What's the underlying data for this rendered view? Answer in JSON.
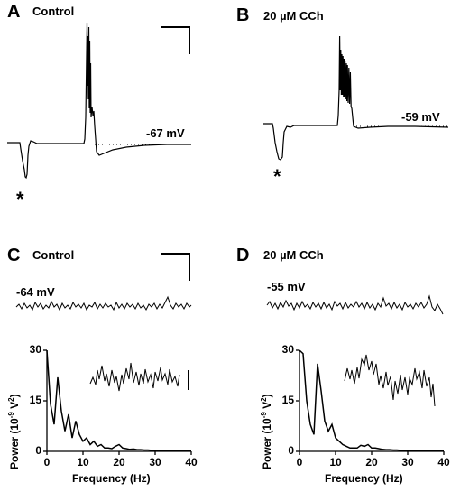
{
  "panels": {
    "A": {
      "letter": "A",
      "condition": "Control",
      "vm": "-67 mV",
      "marker": "*"
    },
    "B": {
      "letter": "B",
      "condition": "20 µM CCh",
      "vm": "-59 mV",
      "marker": "*"
    },
    "C": {
      "letter": "C",
      "condition": "Control",
      "vm": "-64 mV"
    },
    "D": {
      "letter": "D",
      "condition": "20 µM CCh",
      "vm": "-55 mV"
    }
  },
  "chart_data": [
    {
      "panel": "C",
      "type": "line",
      "title": "",
      "xlabel": "Frequency (Hz)",
      "ylabel": "Power (10^-9 V^2)",
      "ylabel_parts": {
        "pre": "Power (10",
        "exp1": "-9",
        "mid": " V",
        "exp2": "2",
        "post": ")"
      },
      "xlim": [
        0,
        40
      ],
      "ylim": [
        0,
        30
      ],
      "xticks": [
        0,
        10,
        20,
        30,
        40
      ],
      "yticks": [
        0,
        15,
        30
      ],
      "series": [
        {
          "x": [
            0,
            1,
            2,
            3,
            4,
            5,
            6,
            7,
            8,
            9,
            10,
            11,
            12,
            13,
            14,
            15,
            16,
            17,
            18,
            19,
            20,
            21,
            22,
            23,
            24,
            25,
            26,
            27,
            28,
            29,
            30,
            31,
            32,
            33,
            34,
            35,
            36,
            37,
            38,
            39,
            40
          ],
          "y": [
            30,
            14,
            8,
            22,
            12,
            6,
            11,
            4,
            9,
            5,
            3,
            4,
            2,
            3,
            1.5,
            2,
            1,
            1,
            0.8,
            1.5,
            2,
            1,
            0.8,
            0.6,
            0.7,
            0.5,
            0.5,
            0.4,
            0.4,
            0.3,
            0.3,
            0.3,
            0.2,
            0.2,
            0.2,
            0.2,
            0.2,
            0.2,
            0.2,
            0.2,
            0.2
          ]
        }
      ]
    },
    {
      "panel": "D",
      "type": "line",
      "title": "",
      "xlabel": "Frequency (Hz)",
      "ylabel": "Power (10^-9 V^2)",
      "ylabel_parts": {
        "pre": "Power (10",
        "exp1": "-9",
        "mid": " V",
        "exp2": "2",
        "post": ")"
      },
      "xlim": [
        0,
        40
      ],
      "ylim": [
        0,
        30
      ],
      "xticks": [
        0,
        10,
        20,
        30,
        40
      ],
      "yticks": [
        0,
        15,
        30
      ],
      "series": [
        {
          "x": [
            0,
            1,
            2,
            3,
            4,
            5,
            6,
            7,
            8,
            9,
            10,
            11,
            12,
            13,
            14,
            15,
            16,
            17,
            18,
            19,
            20,
            21,
            22,
            23,
            24,
            25,
            26,
            27,
            28,
            29,
            30,
            31,
            32,
            33,
            34,
            35,
            36,
            37,
            38,
            39,
            40
          ],
          "y": [
            30,
            29,
            15,
            8,
            5,
            26,
            18,
            9,
            6,
            8,
            4,
            3,
            2,
            1.5,
            1,
            1,
            1,
            1.8,
            1.5,
            2,
            1,
            1,
            0.8,
            0.6,
            0.5,
            0.5,
            0.4,
            0.4,
            0.3,
            0.3,
            0.3,
            0.2,
            0.2,
            0.2,
            0.2,
            0.2,
            0.2,
            0.2,
            0.2,
            0.2,
            0.2
          ]
        }
      ]
    }
  ]
}
